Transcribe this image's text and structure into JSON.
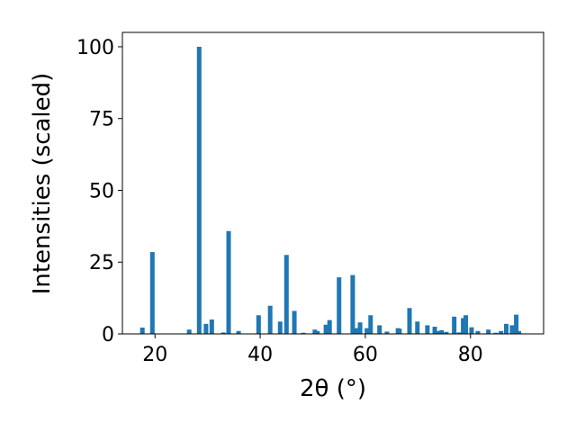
{
  "chart_data": {
    "type": "bar",
    "xlabel": "2θ (°)",
    "ylabel": "Intensities (scaled)",
    "x": [
      17.6,
      19.5,
      26.5,
      28.4,
      29.7,
      30.8,
      33.0,
      34.0,
      35.9,
      39.7,
      41.9,
      43.8,
      45.0,
      46.5,
      48.2,
      50.4,
      50.9,
      52.5,
      53.2,
      55.0,
      57.6,
      58.3,
      59.0,
      60.3,
      61.0,
      62.7,
      64.1,
      66.2,
      66.5,
      68.4,
      69.9,
      71.8,
      73.2,
      73.8,
      74.5,
      75.4,
      76.9,
      77.8,
      78.6,
      79.1,
      80.2,
      81.4,
      83.4,
      84.8,
      85.8,
      86.8,
      87.9,
      88.7,
      89.2
    ],
    "values": [
      2.2,
      28.5,
      1.5,
      100,
      3.5,
      5,
      0.5,
      35.8,
      1,
      6.5,
      9.8,
      4.3,
      27.5,
      8,
      0.4,
      1.5,
      1,
      3.2,
      4.8,
      19.7,
      20.5,
      2,
      4,
      2,
      6.5,
      3,
      0.8,
      2,
      1.8,
      9,
      4.3,
      3,
      2.5,
      1,
      1.3,
      0.7,
      6,
      0.5,
      5.5,
      6.5,
      2.3,
      1,
      1.5,
      0.4,
      1,
      3.5,
      3,
      6.7,
      1
    ],
    "color": "#1f77b4",
    "xlim": [
      13.8,
      93.9
    ],
    "xticks": [
      20,
      40,
      60,
      80
    ],
    "ylim": [
      0,
      105
    ],
    "yticks": [
      0,
      25,
      50,
      75,
      100
    ]
  }
}
